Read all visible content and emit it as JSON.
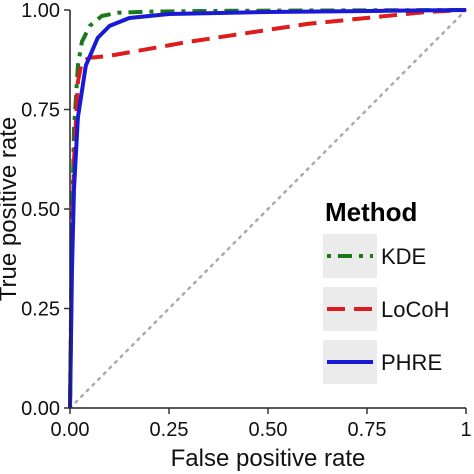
{
  "chart_data": {
    "type": "line",
    "xlabel": "False positive rate",
    "ylabel": "True positive rate",
    "xlim": [
      0,
      1
    ],
    "ylim": [
      0,
      1
    ],
    "x_ticks": [
      "0.00",
      "0.25",
      "0.50",
      "0.75",
      "1"
    ],
    "y_ticks": [
      "0.00",
      "0.25",
      "0.50",
      "0.75",
      "1.00"
    ],
    "grid": false,
    "legend": {
      "title": "Method",
      "position": "right"
    },
    "reference_line": {
      "style": "dotted",
      "color": "#aaaaaa",
      "points": [
        [
          0,
          0
        ],
        [
          1,
          1
        ]
      ]
    },
    "series": [
      {
        "name": "KDE",
        "color": "#1a7a1a",
        "style": "dot-dash",
        "points": [
          [
            0,
            0
          ],
          [
            0.005,
            0.45
          ],
          [
            0.01,
            0.7
          ],
          [
            0.02,
            0.86
          ],
          [
            0.03,
            0.92
          ],
          [
            0.05,
            0.96
          ],
          [
            0.08,
            0.985
          ],
          [
            0.12,
            0.993
          ],
          [
            0.2,
            0.996
          ],
          [
            0.4,
            0.998
          ],
          [
            0.7,
            0.999
          ],
          [
            1,
            1
          ]
        ]
      },
      {
        "name": "LoCoH",
        "color": "#dd1c1c",
        "style": "dashed",
        "points": [
          [
            0,
            0
          ],
          [
            0.005,
            0.4
          ],
          [
            0.01,
            0.62
          ],
          [
            0.02,
            0.82
          ],
          [
            0.03,
            0.87
          ],
          [
            0.05,
            0.88
          ],
          [
            0.1,
            0.885
          ],
          [
            0.3,
            0.92
          ],
          [
            0.6,
            0.965
          ],
          [
            0.9,
            0.995
          ],
          [
            1,
            1
          ]
        ]
      },
      {
        "name": "PHRE",
        "color": "#1a1ad6",
        "style": "solid",
        "points": [
          [
            0,
            0
          ],
          [
            0.005,
            0.35
          ],
          [
            0.01,
            0.55
          ],
          [
            0.02,
            0.73
          ],
          [
            0.04,
            0.86
          ],
          [
            0.07,
            0.93
          ],
          [
            0.1,
            0.96
          ],
          [
            0.15,
            0.98
          ],
          [
            0.25,
            0.99
          ],
          [
            0.5,
            0.995
          ],
          [
            0.8,
            0.998
          ],
          [
            1,
            1
          ]
        ]
      }
    ]
  }
}
